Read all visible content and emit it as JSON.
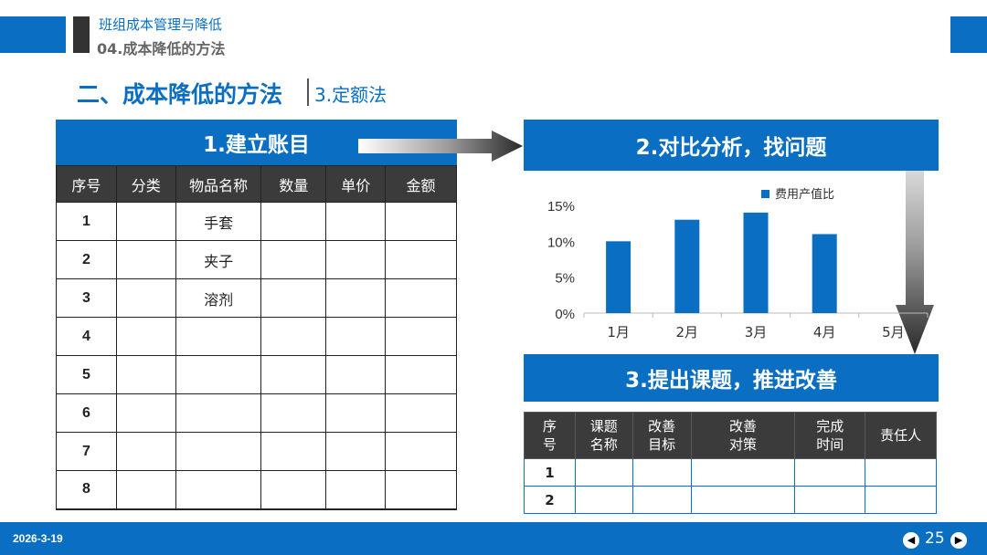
{
  "header": {
    "title": "班组成本管理与降低",
    "subtitle": "04.成本降低的方法"
  },
  "section": {
    "title": "二、成本降低的方法",
    "sub": "3.定额法"
  },
  "panel1": {
    "title": "1.建立账目",
    "columns": [
      "序号",
      "分类",
      "物品名称",
      "数量",
      "单价",
      "金额"
    ],
    "rows": [
      {
        "no": "1",
        "category": "",
        "item": "手套",
        "qty": "",
        "price": "",
        "amount": ""
      },
      {
        "no": "2",
        "category": "",
        "item": "夹子",
        "qty": "",
        "price": "",
        "amount": ""
      },
      {
        "no": "3",
        "category": "",
        "item": "溶剂",
        "qty": "",
        "price": "",
        "amount": ""
      },
      {
        "no": "4",
        "category": "",
        "item": "",
        "qty": "",
        "price": "",
        "amount": ""
      },
      {
        "no": "5",
        "category": "",
        "item": "",
        "qty": "",
        "price": "",
        "amount": ""
      },
      {
        "no": "6",
        "category": "",
        "item": "",
        "qty": "",
        "price": "",
        "amount": ""
      },
      {
        "no": "7",
        "category": "",
        "item": "",
        "qty": "",
        "price": "",
        "amount": ""
      },
      {
        "no": "8",
        "category": "",
        "item": "",
        "qty": "",
        "price": "",
        "amount": ""
      }
    ]
  },
  "panel2": {
    "title": "2.对比分析，找问题"
  },
  "chart_data": {
    "type": "bar",
    "categories": [
      "1月",
      "2月",
      "3月",
      "4月",
      "5月"
    ],
    "series": [
      {
        "name": "费用产值比",
        "values": [
          10,
          13,
          14,
          11,
          0
        ],
        "color": "#0a6fc2"
      }
    ],
    "yticks": [
      "0%",
      "5%",
      "10%",
      "15%"
    ],
    "ylim": [
      0,
      15
    ],
    "legend": "top-right",
    "grid": false
  },
  "panel3": {
    "title": "3.提出课题，推进改善",
    "columns": [
      [
        "序",
        "号"
      ],
      [
        "课题",
        "名称"
      ],
      [
        "改善",
        "目标"
      ],
      [
        "改善",
        "对策"
      ],
      [
        "完成",
        "时间"
      ],
      [
        "责任人"
      ]
    ],
    "rows": [
      {
        "no": "1",
        "name": "",
        "target": "",
        "measure": "",
        "time": "",
        "owner": ""
      },
      {
        "no": "2",
        "name": "",
        "target": "",
        "measure": "",
        "time": "",
        "owner": ""
      }
    ]
  },
  "footer": {
    "date": "2026-3-19",
    "page": "25",
    "prev_icon": "prev-arrow-icon",
    "next_icon": "next-arrow-icon"
  },
  "colors": {
    "accent": "#0a6fc2",
    "table_header": "#3b3b3b"
  }
}
